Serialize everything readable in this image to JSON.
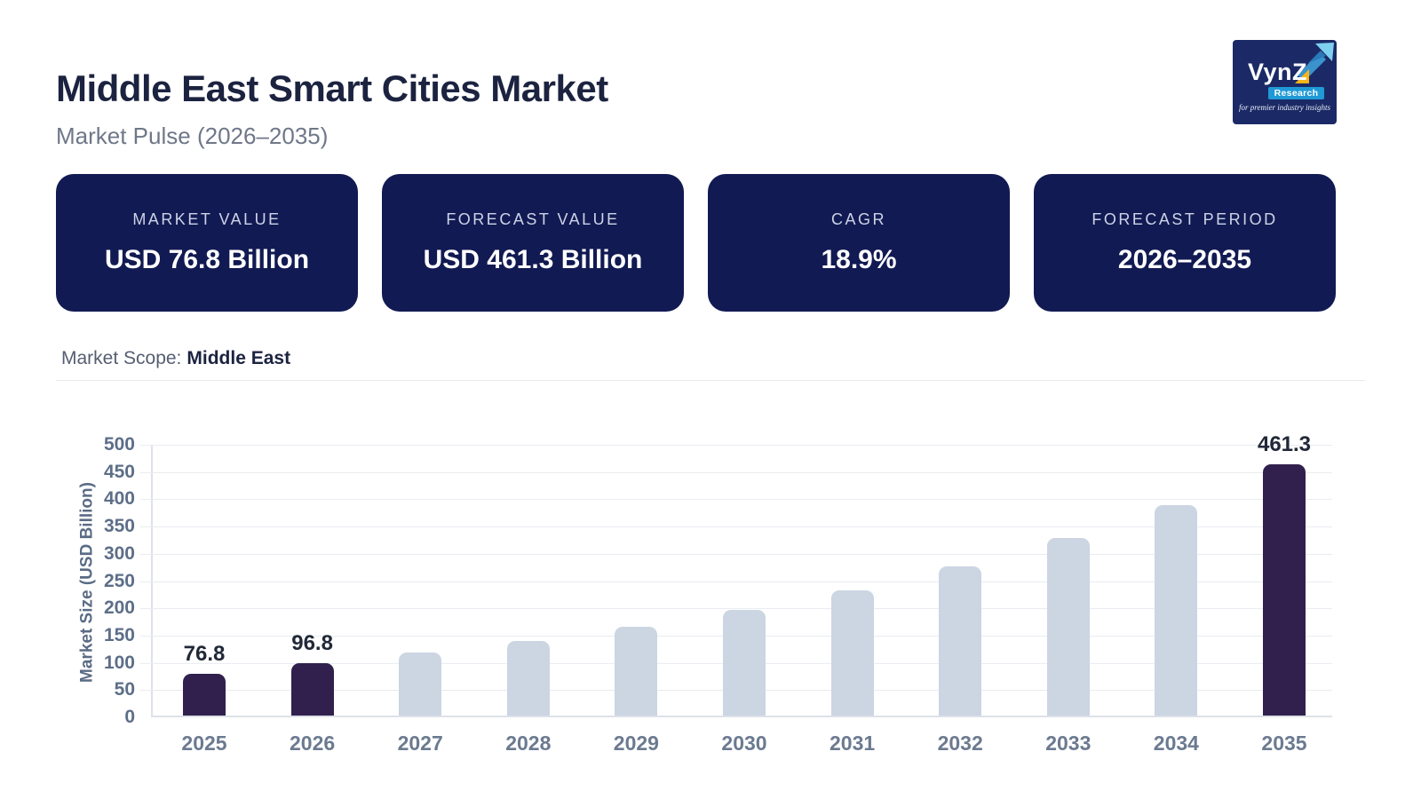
{
  "page": {
    "title": "Middle East Smart Cities Market",
    "subtitle": "Market Pulse (2026–2035)",
    "scope_label": "Market Scope:",
    "scope_value": "Middle East"
  },
  "logo": {
    "brand": "VynZ",
    "sub": "Research",
    "tagline": "for premier industry insights",
    "bg_color": "#1b2a66",
    "badge_color": "#1f9ad6",
    "accent_color": "#f7b318"
  },
  "stats": [
    {
      "label": "MARKET VALUE",
      "value": "USD 76.8 Billion"
    },
    {
      "label": "FORECAST VALUE",
      "value": "USD 461.3 Billion"
    },
    {
      "label": "CAGR",
      "value": "18.9%"
    },
    {
      "label": "FORECAST PERIOD",
      "value": "2026–2035"
    }
  ],
  "colors": {
    "card_bg": "#111a52",
    "title_text": "#1c2340",
    "bar_highlight": "#31204d",
    "bar_default": "#ccd5e2"
  },
  "chart_data": {
    "type": "bar",
    "title": "",
    "xlabel": "",
    "ylabel": "Market Size (USD Billion)",
    "categories": [
      "2025",
      "2026",
      "2027",
      "2028",
      "2029",
      "2030",
      "2031",
      "2032",
      "2033",
      "2034",
      "2035"
    ],
    "values": [
      76.8,
      96.8,
      115.1,
      136.9,
      162.8,
      193.5,
      230.1,
      273.6,
      325.3,
      386.8,
      461.3
    ],
    "data_labels": [
      "76.8",
      "96.8",
      null,
      null,
      null,
      null,
      null,
      null,
      null,
      null,
      "461.3"
    ],
    "highlighted": [
      true,
      true,
      false,
      false,
      false,
      false,
      false,
      false,
      false,
      false,
      true
    ],
    "ylim": [
      0,
      500
    ],
    "ytick_step": 50,
    "grid": true,
    "legend": "none",
    "bar_color_highlight": "#31204d",
    "bar_color_default": "#ccd5e2"
  }
}
